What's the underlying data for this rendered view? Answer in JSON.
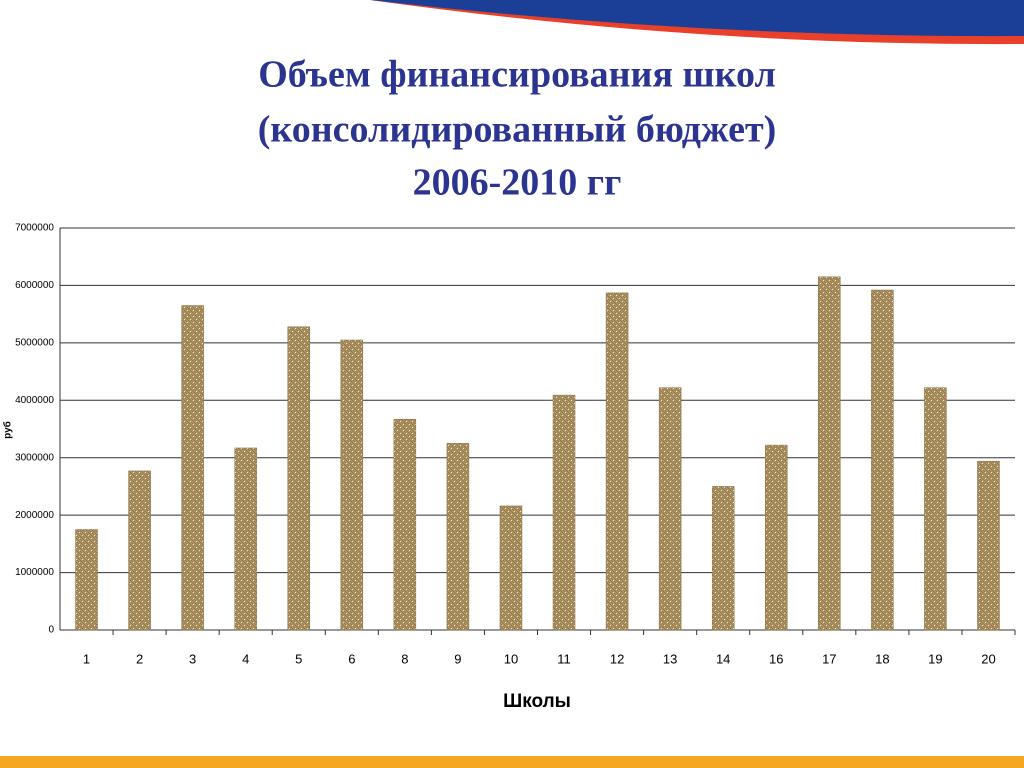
{
  "chart_data": {
    "type": "bar",
    "title_lines": [
      "Объем финансирования школ",
      "(консолидированный бюджет)",
      "2006-2010 гг"
    ],
    "x_label": "Школы",
    "y_label": "руб",
    "categories": [
      "1",
      "2",
      "3",
      "4",
      "5",
      "6",
      "8",
      "9",
      "10",
      "11",
      "12",
      "13",
      "14",
      "16",
      "17",
      "18",
      "19",
      "20"
    ],
    "values": [
      1750000,
      2770000,
      5650000,
      3170000,
      5280000,
      5050000,
      3670000,
      3250000,
      2160000,
      4090000,
      5870000,
      4220000,
      2500000,
      3220000,
      6150000,
      5920000,
      4220000,
      2940000
    ],
    "color": "#b59b68",
    "ylim": [
      0,
      7000000
    ],
    "yticks": [
      0,
      1000000,
      2000000,
      3000000,
      4000000,
      5000000,
      6000000,
      7000000
    ],
    "grid": true
  }
}
